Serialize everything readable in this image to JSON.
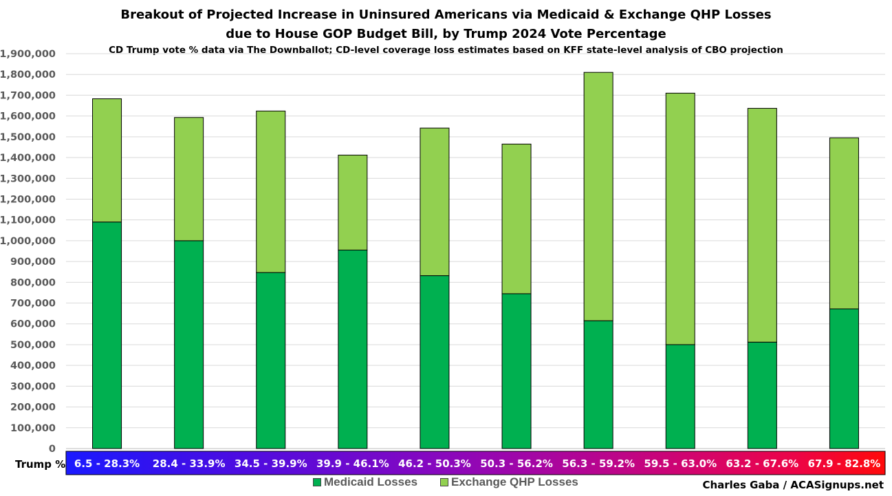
{
  "chart_data": {
    "type": "bar",
    "stacked": true,
    "title": "Breakout of Projected Increase in Uninsured Americans via Medicaid & Exchange QHP Losses",
    "title_line2": "due to House GOP Budget Bill, by Trump 2024 Vote Percentage",
    "subtitle": "CD Trump vote % data via The Downballot; CD-level coverage loss estimates based on KFF state-level analysis of CBO projection",
    "xlabel": "Trump %",
    "categories": [
      "6.5 - 28.3%",
      "28.4 - 33.9%",
      "34.5 - 39.9%",
      "39.9 - 46.1%",
      "46.2 - 50.3%",
      "50.3 - 56.2%",
      "56.3 - 59.2%",
      "59.5 - 63.0%",
      "63.2 - 67.6%",
      "67.9 - 82.8%"
    ],
    "series": [
      {
        "name": "Medicaid Losses",
        "color": "#00b050",
        "values": [
          1090000,
          1000000,
          847000,
          955000,
          832000,
          745000,
          615000,
          500000,
          512000,
          672000
        ]
      },
      {
        "name": "Exchange QHP Losses",
        "color": "#92d050",
        "values": [
          593000,
          593000,
          777000,
          457000,
          710000,
          720000,
          1195000,
          1210000,
          1125000,
          823000
        ]
      }
    ],
    "ylim": [
      0,
      1900000
    ],
    "ytick_step": 100000,
    "ytick_labels": [
      "0",
      "100,000",
      "200,000",
      "300,000",
      "400,000",
      "500,000",
      "600,000",
      "700,000",
      "800,000",
      "900,000",
      "1,000,000",
      "1,100,000",
      "1,200,000",
      "1,300,000",
      "1,400,000",
      "1,500,000",
      "1,600,000",
      "1,700,000",
      "1,800,000",
      "1,900,000"
    ],
    "grid": true,
    "legend_position": "bottom",
    "category_band_colors": [
      "#1a1aff",
      "#3412ee",
      "#4f0ce0",
      "#6a0ad0",
      "#8508c0",
      "#a006a8",
      "#bb058a",
      "#d5046a",
      "#ec0448",
      "#ff0a0a"
    ],
    "credit": "Charles Gaba / ACASignups.net"
  }
}
